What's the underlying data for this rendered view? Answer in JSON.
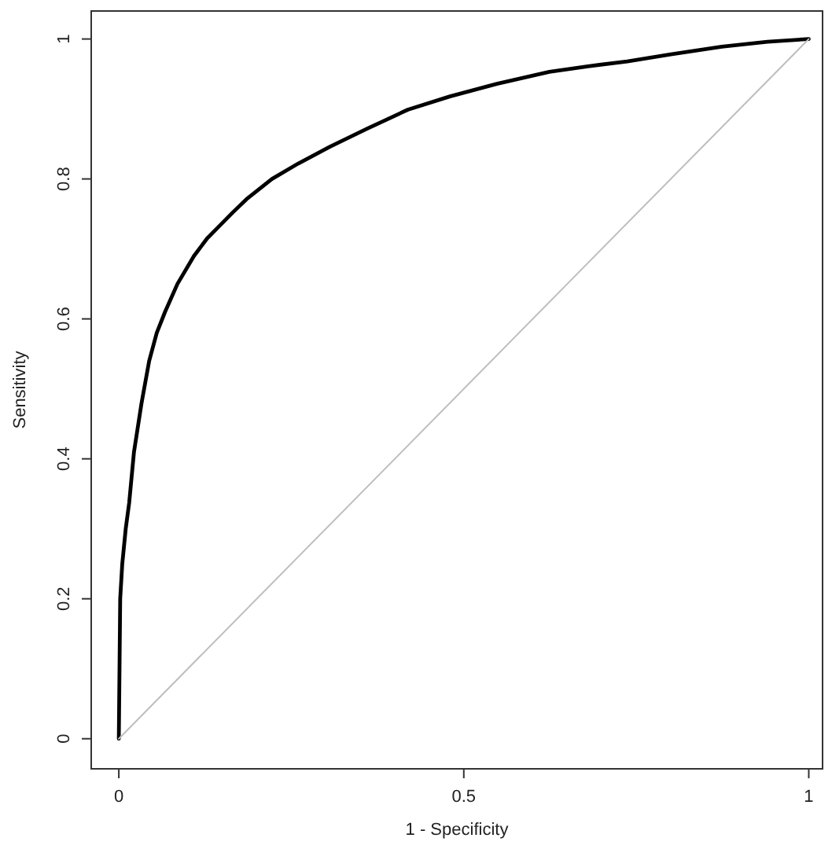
{
  "chart_data": {
    "type": "line",
    "xlabel": "1 - Specificity",
    "ylabel": "Sensitivity",
    "xlim": [
      -0.04,
      1.02
    ],
    "ylim": [
      -0.043,
      1.04
    ],
    "xticks": [
      0,
      0.5,
      1
    ],
    "yticks": [
      0,
      0.2,
      0.4,
      0.6,
      0.8,
      1
    ],
    "grid": false,
    "marker": "none",
    "line_style": "solid",
    "series": [
      {
        "color": "#000000",
        "x": [
          0,
          0.002,
          0.005,
          0.01,
          0.015,
          0.022,
          0.033,
          0.044,
          0.055,
          0.067,
          0.085,
          0.109,
          0.128,
          0.147,
          0.165,
          0.185,
          0.222,
          0.26,
          0.306,
          0.36,
          0.419,
          0.48,
          0.548,
          0.624,
          0.68,
          0.737,
          0.8,
          0.874,
          0.94,
          1
        ],
        "values": [
          0,
          0.2,
          0.25,
          0.3,
          0.337,
          0.41,
          0.48,
          0.54,
          0.58,
          0.61,
          0.65,
          0.69,
          0.715,
          0.734,
          0.752,
          0.771,
          0.8,
          0.822,
          0.846,
          0.872,
          0.899,
          0.918,
          0.936,
          0.953,
          0.961,
          0.968,
          0.978,
          0.989,
          0.996,
          1
        ]
      },
      {
        "color": "#bebebe",
        "x": [
          0,
          1
        ],
        "values": [
          0,
          1
        ]
      }
    ]
  }
}
